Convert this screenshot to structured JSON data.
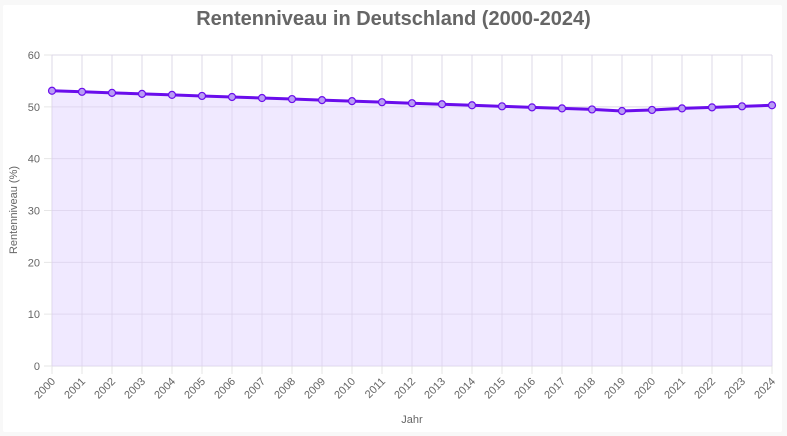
{
  "chart_data": {
    "type": "line",
    "title": "Rentenniveau in Deutschland (2000-2024)",
    "xlabel": "Jahr",
    "ylabel": "Rentenniveau (%)",
    "ylim": [
      0,
      60
    ],
    "yticks": [
      0,
      10,
      20,
      30,
      40,
      50,
      60
    ],
    "grid": true,
    "legend": "none",
    "fill": true,
    "categories": [
      "2000",
      "2001",
      "2002",
      "2003",
      "2004",
      "2005",
      "2006",
      "2007",
      "2008",
      "2009",
      "2010",
      "2011",
      "2012",
      "2013",
      "2014",
      "2015",
      "2016",
      "2017",
      "2018",
      "2019",
      "2020",
      "2021",
      "2022",
      "2023",
      "2024"
    ],
    "series": [
      {
        "name": "Rentenniveau (%)",
        "values": [
          53.1,
          52.9,
          52.7,
          52.5,
          52.3,
          52.1,
          51.9,
          51.7,
          51.5,
          51.3,
          51.1,
          50.9,
          50.7,
          50.5,
          50.3,
          50.1,
          49.9,
          49.7,
          49.5,
          49.2,
          49.4,
          49.7,
          49.9,
          50.1,
          50.3
        ],
        "line_color": "#6a0dec",
        "fill_color": "#ede5ff"
      }
    ]
  }
}
